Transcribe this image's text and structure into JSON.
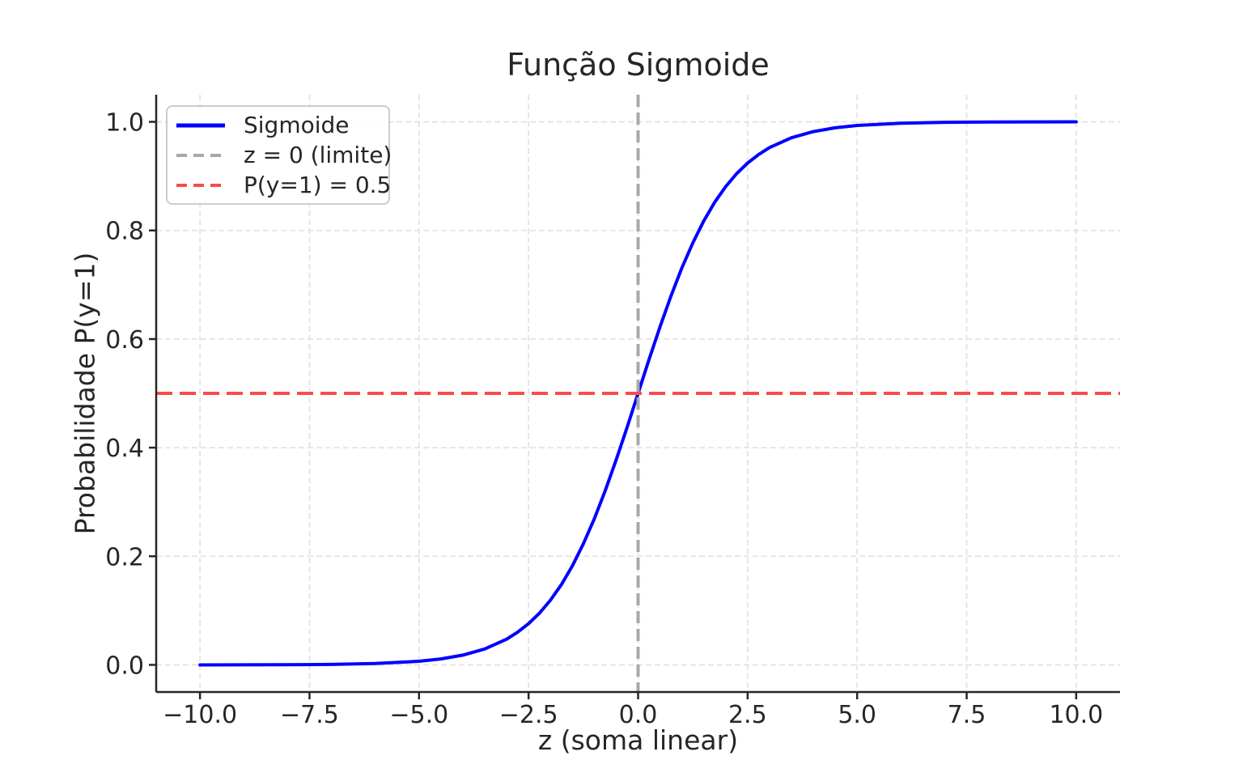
{
  "chart_data": {
    "type": "line",
    "title": "Função Sigmoide",
    "xlabel": "z (soma linear)",
    "ylabel": "Probabilidade P(y=1)",
    "xlim": [
      -11,
      11
    ],
    "ylim": [
      -0.05,
      1.05
    ],
    "grid": true,
    "legend_position": "upper left",
    "xticks": {
      "values": [
        -10,
        -7.5,
        -5,
        -2.5,
        0,
        2.5,
        5,
        7.5,
        10
      ],
      "labels": [
        "−10.0",
        "−7.5",
        "−5.0",
        "−2.5",
        "0.0",
        "2.5",
        "5.0",
        "7.5",
        "10.0"
      ]
    },
    "yticks": {
      "values": [
        0,
        0.2,
        0.4,
        0.6,
        0.8,
        1.0
      ],
      "labels": [
        "0.0",
        "0.2",
        "0.4",
        "0.6",
        "0.8",
        "1.0"
      ]
    },
    "series": [
      {
        "name": "Sigmoide",
        "type": "line",
        "linestyle": "solid",
        "color": "#0000ff",
        "linewidth": 4,
        "x": [
          -10,
          -9,
          -8,
          -7,
          -6,
          -5,
          -4.5,
          -4,
          -3.5,
          -3,
          -2.75,
          -2.5,
          -2.25,
          -2,
          -1.75,
          -1.5,
          -1.25,
          -1,
          -0.75,
          -0.5,
          -0.25,
          0,
          0.25,
          0.5,
          0.75,
          1,
          1.25,
          1.5,
          1.75,
          2,
          2.25,
          2.5,
          2.75,
          3,
          3.5,
          4,
          4.5,
          5,
          6,
          7,
          8,
          9,
          10
        ],
        "y": [
          0.0,
          0.0001,
          0.0003,
          0.0009,
          0.0025,
          0.0067,
          0.011,
          0.018,
          0.0293,
          0.0474,
          0.0601,
          0.0759,
          0.0953,
          0.1192,
          0.148,
          0.1824,
          0.2227,
          0.2689,
          0.3208,
          0.3775,
          0.4378,
          0.5,
          0.5622,
          0.6225,
          0.6792,
          0.7311,
          0.7773,
          0.8176,
          0.852,
          0.8808,
          0.9047,
          0.9241,
          0.9399,
          0.9526,
          0.9707,
          0.982,
          0.989,
          0.9933,
          0.9975,
          0.9991,
          0.9997,
          0.9999,
          1.0
        ]
      },
      {
        "name": "z = 0 (limite)",
        "type": "vline",
        "x": 0,
        "linestyle": "dashed",
        "color": "#a8a8a8",
        "linewidth": 4,
        "dash": "15 7"
      },
      {
        "name": "P(y=1) = 0.5",
        "type": "hline",
        "y": 0.5,
        "linestyle": "dashed",
        "color": "#fa4b4b",
        "linewidth": 4,
        "dash": "20 9"
      }
    ],
    "colors": {
      "background": "#ffffff",
      "text": "#262626",
      "spine": "#262626",
      "grid": "#e3e3e3",
      "legend_border": "#cccccc"
    }
  }
}
